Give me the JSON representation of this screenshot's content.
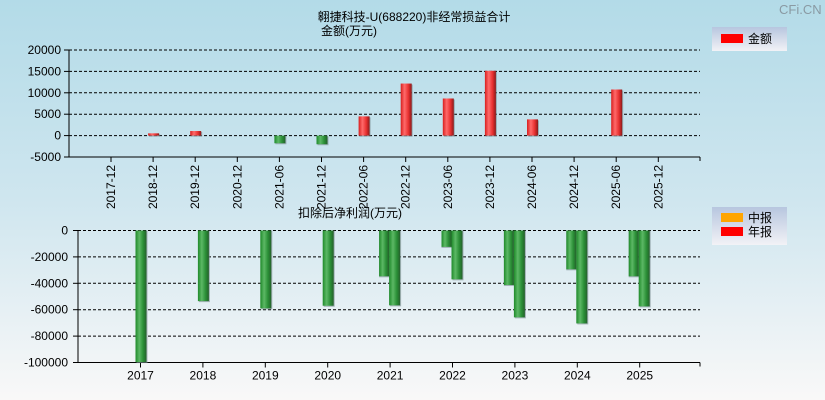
{
  "watermark": "CFi.CN",
  "chart_data": [
    {
      "type": "bar",
      "title": "翱捷科技-U(688220)非经常损益合计",
      "subtitle": "金额(万元)",
      "xlabel": "",
      "ylabel": "",
      "ylim": [
        -5000,
        20000
      ],
      "yticks": [
        20000,
        15000,
        10000,
        5000,
        0,
        -5000
      ],
      "grid": true,
      "legend_position": "top-right",
      "categories": [
        "2017-12",
        "2018-12",
        "2019-12",
        "2020-12",
        "2021-06",
        "2021-12",
        "2022-06",
        "2022-12",
        "2023-06",
        "2023-12",
        "2024-06",
        "2024-12",
        "2025-06",
        "2025-12"
      ],
      "series": [
        {
          "name": "金额",
          "color": "#ff0000",
          "negative_color": "#2e9a3a",
          "values": [
            null,
            530,
            1070,
            null,
            -1790,
            -2020,
            4490,
            12160,
            8670,
            15150,
            3790,
            null,
            10770,
            null
          ]
        }
      ]
    },
    {
      "type": "bar",
      "title": "扣除后净利润(万元)",
      "xlabel": "",
      "ylabel": "",
      "ylim": [
        -100000,
        0
      ],
      "yticks": [
        0,
        -20000,
        -40000,
        -60000,
        -80000,
        -100000
      ],
      "grid": true,
      "legend_position": "top-right",
      "categories": [
        "2017",
        "2018",
        "2019",
        "2020",
        "2021",
        "2022",
        "2023",
        "2024",
        "2025"
      ],
      "series": [
        {
          "name": "中报",
          "color": "#ffa500",
          "values": [
            null,
            null,
            null,
            null,
            -34700,
            -12400,
            -41300,
            -29400,
            -34700
          ]
        },
        {
          "name": "年报",
          "color": "#ff0000",
          "values": [
            -99700,
            -53500,
            -59000,
            -57000,
            -56700,
            -37000,
            -65800,
            -70400,
            -57500
          ]
        }
      ]
    }
  ]
}
